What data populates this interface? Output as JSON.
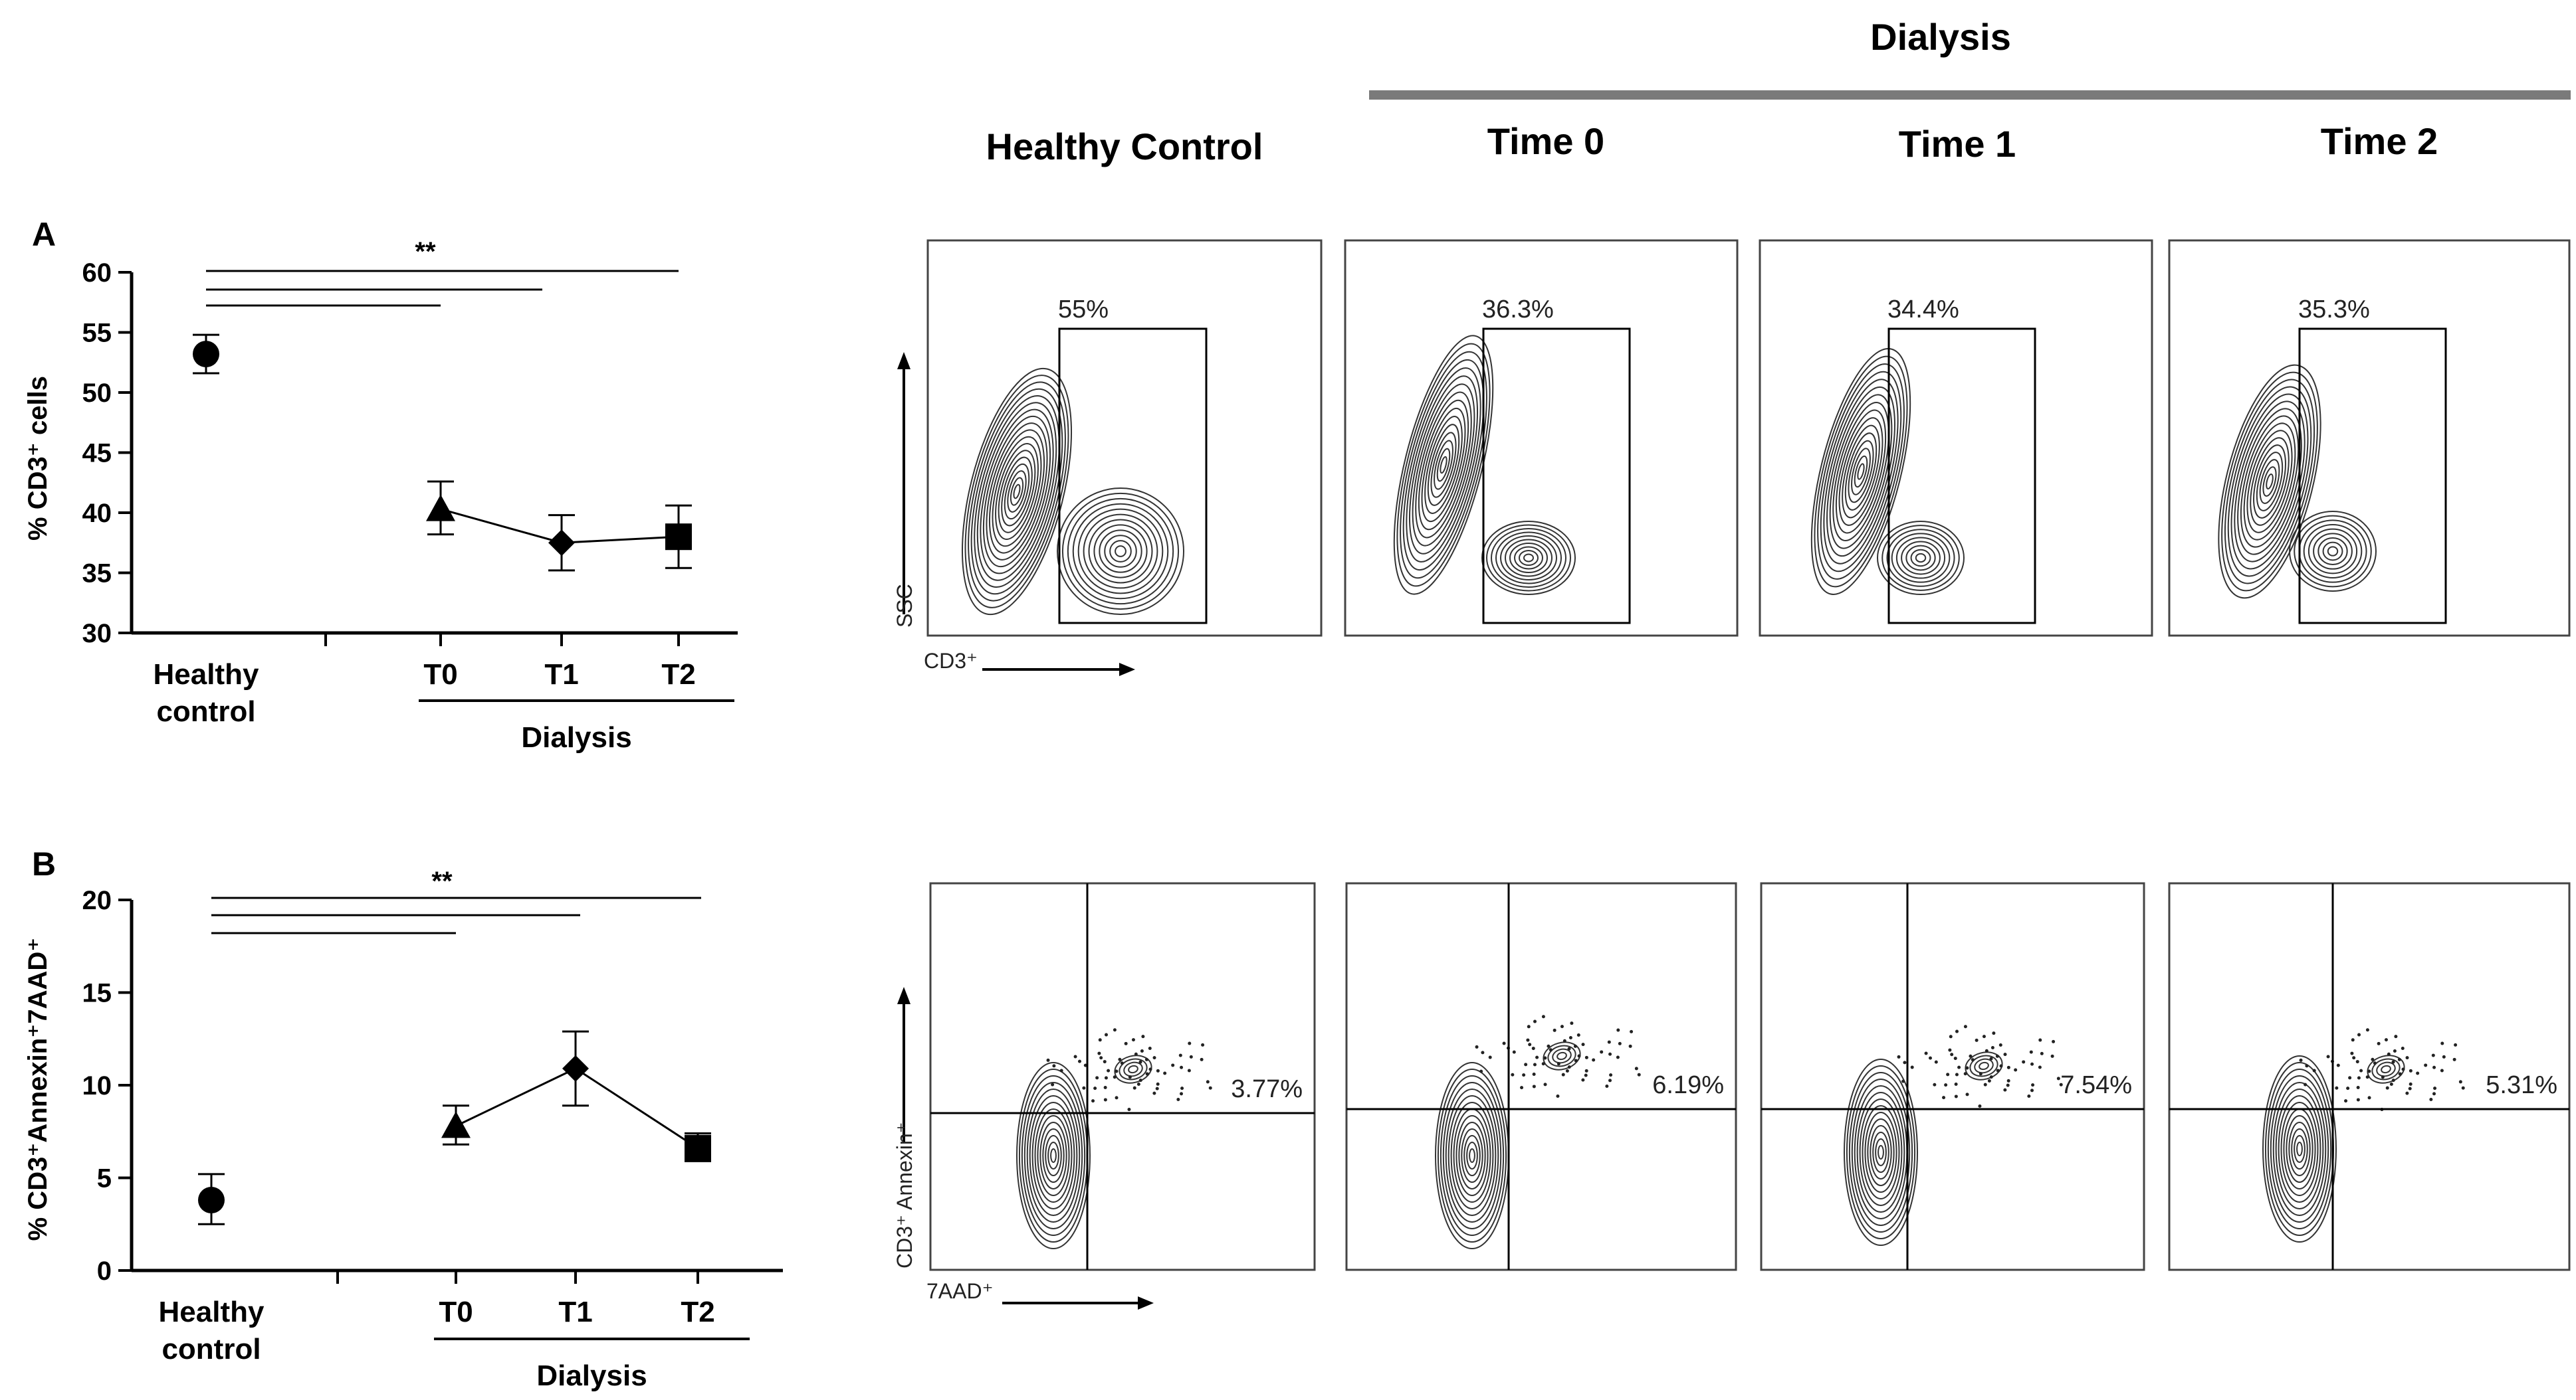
{
  "header": {
    "dialysis_group": "Dialysis",
    "columns": [
      "Healthy Control",
      "Time 0",
      "Time 1",
      "Time 2"
    ]
  },
  "chart_data": [
    {
      "panel": "A",
      "type": "scatter",
      "ylabel": "% CD3⁺ cells",
      "ylim": [
        30,
        60
      ],
      "yticks": [
        30,
        35,
        40,
        45,
        50,
        55,
        60
      ],
      "categories": [
        "Healthy control",
        "T0",
        "T1",
        "T2"
      ],
      "category_lines": [
        [
          "Healthy",
          "control"
        ],
        [
          "T0"
        ],
        [
          "T1"
        ],
        [
          "T2"
        ]
      ],
      "group_label": "Dialysis",
      "significance": "**",
      "series": [
        {
          "name": "Healthy control",
          "marker": "circle",
          "x": 0,
          "y": 53.2,
          "err_low": 51.6,
          "err_high": 54.8
        },
        {
          "name": "T0",
          "marker": "triangle",
          "x": 1,
          "y": 40.3,
          "err_low": 38.2,
          "err_high": 42.6
        },
        {
          "name": "T1",
          "marker": "diamond",
          "x": 2,
          "y": 37.5,
          "err_low": 35.2,
          "err_high": 39.8
        },
        {
          "name": "T2",
          "marker": "square",
          "x": 3,
          "y": 38.0,
          "err_low": 35.4,
          "err_high": 40.6
        }
      ],
      "connected": [
        "T0",
        "T1",
        "T2"
      ]
    },
    {
      "panel": "B",
      "type": "scatter",
      "ylabel": "% CD3⁺Annexin⁺7AAD⁺",
      "ylim": [
        0,
        20
      ],
      "yticks": [
        0,
        5,
        10,
        15,
        20
      ],
      "categories": [
        "Healthy control",
        "T0",
        "T1",
        "T2"
      ],
      "category_lines": [
        [
          "Healthy",
          "control"
        ],
        [
          "T0"
        ],
        [
          "T1"
        ],
        [
          "T2"
        ]
      ],
      "group_label": "Dialysis",
      "significance": "**",
      "series": [
        {
          "name": "Healthy control",
          "marker": "circle",
          "x": 0,
          "y": 3.8,
          "err_low": 2.5,
          "err_high": 5.2
        },
        {
          "name": "T0",
          "marker": "triangle",
          "x": 1,
          "y": 7.8,
          "err_low": 6.8,
          "err_high": 8.9
        },
        {
          "name": "T1",
          "marker": "diamond",
          "x": 2,
          "y": 10.9,
          "err_low": 8.9,
          "err_high": 12.9
        },
        {
          "name": "T2",
          "marker": "square",
          "x": 3,
          "y": 6.6,
          "err_low": 5.9,
          "err_high": 7.4
        }
      ],
      "connected": [
        "T0",
        "T1",
        "T2"
      ]
    },
    {
      "type": "flow-cytometry",
      "row": "CD3 gating",
      "x_axis": "CD3⁺",
      "y_axis": "SSC",
      "gates": [
        "55%",
        "36.3%",
        "34.4%",
        "35.3%"
      ]
    },
    {
      "type": "flow-cytometry",
      "row": "Apoptosis",
      "x_axis": "7AAD⁺",
      "y_axis": "CD3⁺ Annexin⁺",
      "quadrant_values": [
        "3.77%",
        "6.19%",
        "7.54%",
        "5.31%"
      ]
    }
  ]
}
